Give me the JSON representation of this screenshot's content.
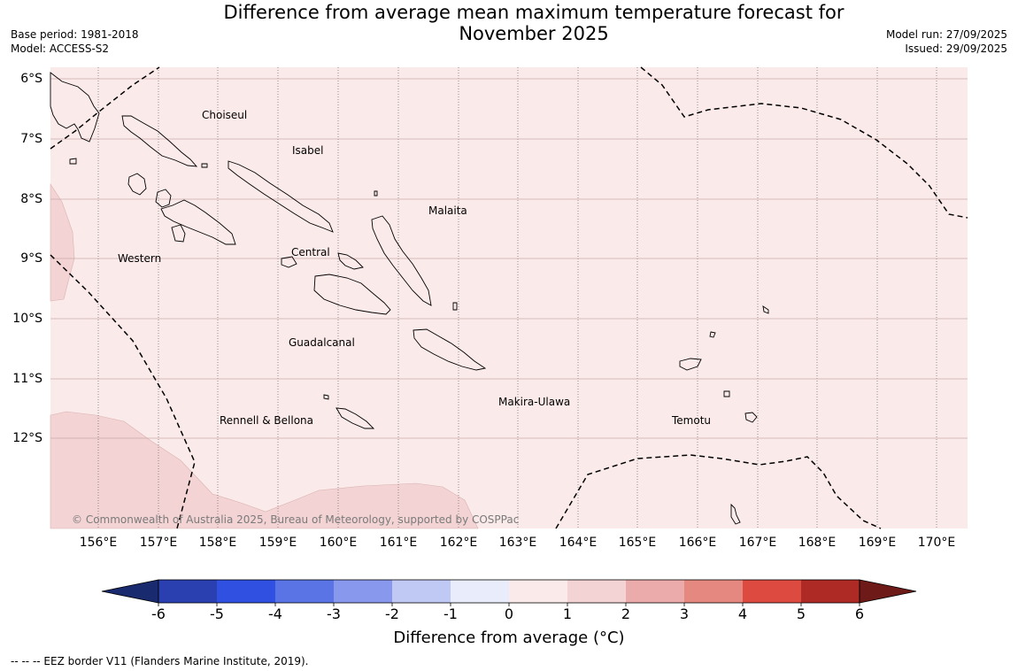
{
  "title_line1": "Difference from average mean maximum temperature forecast for",
  "title_line2": "November 2025",
  "meta_left": {
    "base_period": "Base period: 1981-2018",
    "model": "Model: ACCESS-S2"
  },
  "meta_right": {
    "model_run": "Model run: 27/09/2025",
    "issued": "Issued: 29/09/2025"
  },
  "lat_labels": [
    "6°S",
    "7°S",
    "8°S",
    "9°S",
    "10°S",
    "11°S",
    "12°S"
  ],
  "lon_labels": [
    "156°E",
    "157°E",
    "158°E",
    "159°E",
    "160°E",
    "161°E",
    "162°E",
    "163°E",
    "164°E",
    "165°E",
    "166°E",
    "167°E",
    "168°E",
    "169°E",
    "170°E"
  ],
  "regions": [
    "Choiseul",
    "Isabel",
    "Malaita",
    "Western",
    "Central",
    "Guadalcanal",
    "Makira-Ulawa",
    "Rennell & Bellona",
    "Temotu"
  ],
  "copyright": "© Commonwealth of Australia 2025, Bureau of Meteorology, supported by COSPPac",
  "colorbar": {
    "ticks": [
      "-6",
      "-5",
      "-4",
      "-3",
      "-2",
      "-1",
      "0",
      "1",
      "2",
      "3",
      "4",
      "5",
      "6"
    ],
    "colors": [
      "#1a2a6e",
      "#2a40b0",
      "#2f50e0",
      "#5a74e6",
      "#8898ec",
      "#c0c8f4",
      "#e8ecfb",
      "#fbeaea",
      "#f3d3d3",
      "#ecabab",
      "#e58880",
      "#dc4a40",
      "#ad2a25",
      "#6e1a18"
    ],
    "label": "Difference from average (°C)"
  },
  "footnote": "--  --  -- EEZ border V11 (Flanders Marine Institute, 2019).",
  "chart_data": {
    "type": "heatmap",
    "title": "Difference from average mean maximum temperature forecast for November 2025",
    "x_range": [
      155.2,
      170.5
    ],
    "y_range": [
      -13.5,
      -5.8
    ],
    "background_anomaly_range": [
      0,
      1
    ],
    "highlight_anomaly_range": [
      1,
      2
    ],
    "units": "°C"
  }
}
